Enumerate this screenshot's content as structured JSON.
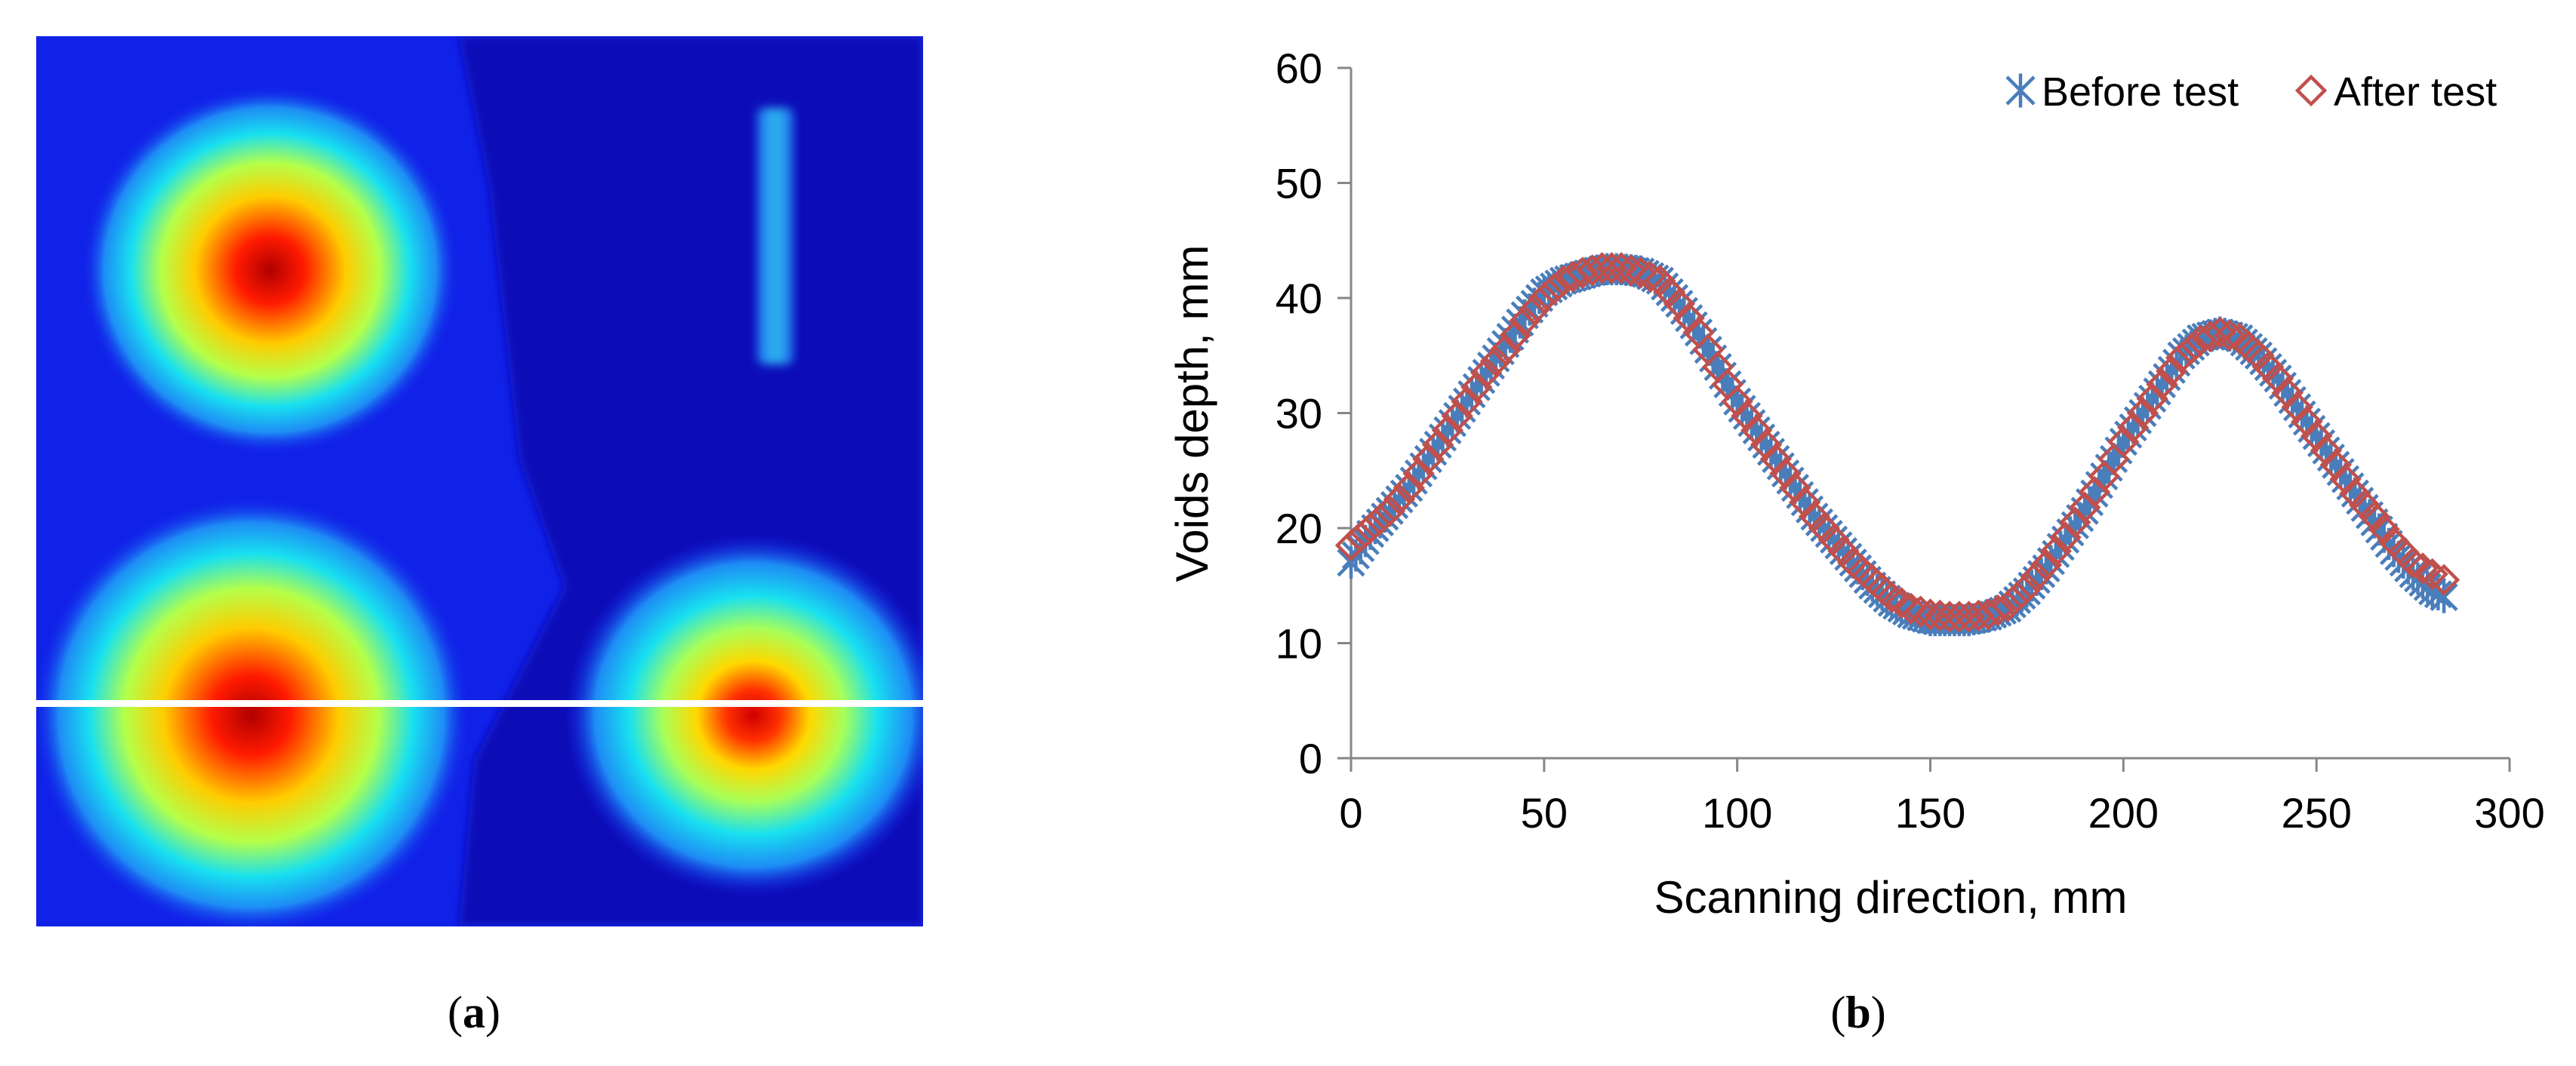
{
  "panels": {
    "a": {
      "label": "a"
    },
    "b": {
      "label": "b"
    }
  },
  "heatmap": {
    "colors": {
      "background": "#1122e8",
      "dark_region": "#0d10b0",
      "hot": "#c00000",
      "mid": "#ffee00",
      "cool": "#19d8f0"
    },
    "scan_line_color": "#ffffff"
  },
  "chart_data": {
    "type": "scatter",
    "title": "",
    "xlabel": "Scanning direction, mm",
    "ylabel": "Voids depth, mm",
    "xlim": [
      0,
      300
    ],
    "ylim": [
      0,
      60
    ],
    "xticks": [
      0,
      50,
      100,
      150,
      200,
      250,
      300
    ],
    "yticks": [
      0,
      10,
      20,
      30,
      40,
      50,
      60
    ],
    "grid": false,
    "legend_position": "top-right",
    "series": [
      {
        "name": "Before test",
        "marker": "asterisk",
        "color": "#4a7ebb",
        "x": [
          0,
          5,
          10,
          15,
          20,
          25,
          30,
          35,
          40,
          45,
          50,
          55,
          60,
          65,
          70,
          75,
          80,
          85,
          90,
          95,
          100,
          105,
          110,
          115,
          120,
          125,
          130,
          135,
          140,
          145,
          150,
          155,
          160,
          165,
          170,
          175,
          180,
          185,
          190,
          195,
          200,
          205,
          210,
          215,
          220,
          225,
          230,
          235,
          240,
          245,
          250,
          255,
          260,
          265,
          270,
          275,
          280,
          283
        ],
        "y": [
          17,
          19.5,
          21.5,
          23.5,
          26,
          28.5,
          31,
          33.5,
          36,
          38.5,
          40.5,
          41.5,
          42,
          42.5,
          42.5,
          42.3,
          41.5,
          39.5,
          37,
          34,
          31,
          28.5,
          26,
          23.5,
          21,
          19,
          17,
          15,
          13.5,
          12.5,
          12,
          12,
          12,
          12.3,
          13,
          14.5,
          16.5,
          19,
          21.5,
          24.5,
          27.5,
          30,
          32.5,
          35,
          36.5,
          37,
          36.5,
          35,
          33,
          30.5,
          28,
          25.5,
          23,
          20.5,
          18,
          16,
          14.5,
          14
        ]
      },
      {
        "name": "After test",
        "marker": "diamond",
        "color": "#c0504d",
        "x": [
          0,
          5,
          10,
          15,
          20,
          25,
          30,
          35,
          40,
          45,
          50,
          55,
          60,
          65,
          70,
          75,
          80,
          85,
          90,
          95,
          100,
          105,
          110,
          115,
          120,
          125,
          130,
          135,
          140,
          145,
          150,
          155,
          160,
          165,
          170,
          175,
          180,
          185,
          190,
          195,
          200,
          205,
          210,
          215,
          220,
          225,
          230,
          235,
          240,
          245,
          250,
          255,
          260,
          265,
          270,
          275,
          280,
          283
        ],
        "y": [
          18.5,
          20,
          21.5,
          23.5,
          26,
          28.5,
          31,
          33.5,
          35.5,
          38,
          40,
          41.5,
          42.2,
          42.6,
          42.6,
          42.2,
          41.5,
          39.5,
          37,
          34,
          31,
          28.5,
          26,
          23.5,
          21,
          19,
          17,
          15.5,
          14,
          13,
          12.5,
          12.3,
          12.3,
          12.5,
          13.2,
          14.8,
          16.8,
          19.2,
          21.8,
          24.5,
          27.5,
          30,
          32.5,
          34.8,
          36.3,
          37,
          36.5,
          35,
          33,
          30.5,
          28,
          25.5,
          23,
          21,
          18.8,
          17,
          16,
          15.5
        ]
      }
    ]
  }
}
